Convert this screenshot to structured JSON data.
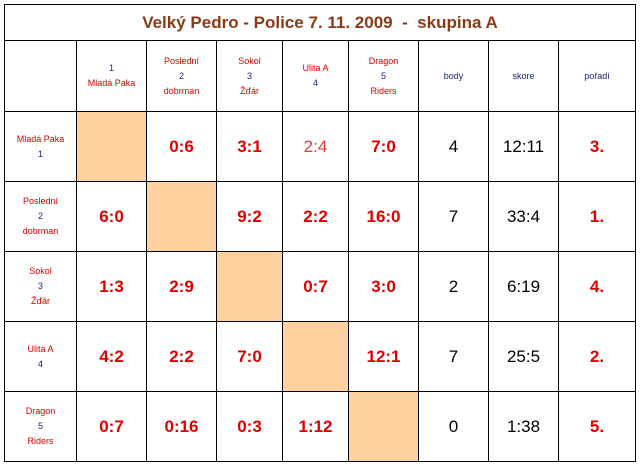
{
  "title": "Velký Pedro - Police 7. 11. 2009  -  skupina A",
  "columns": {
    "teams": [
      {
        "num": "1",
        "name_lines": [
          "Mladá Paka"
        ],
        "num_first": true
      },
      {
        "num": "2",
        "name_lines": [
          "Poslední",
          "dobrman"
        ]
      },
      {
        "num": "3",
        "name_lines": [
          "Sokol",
          "Žďár"
        ]
      },
      {
        "num": "4",
        "name_lines": [
          "Ulita A"
        ]
      },
      {
        "num": "5",
        "name_lines": [
          "Dragon",
          "Riders"
        ]
      }
    ],
    "stats": [
      "body",
      "skore",
      "pořadí"
    ]
  },
  "rows": [
    {
      "label": [
        "Mladá Paka",
        "1"
      ],
      "scores": [
        "",
        "0:6",
        "3:1",
        "2:4",
        "7:0"
      ],
      "body": "4",
      "skore": "12:11",
      "poradi": "3."
    },
    {
      "label": [
        "Poslední",
        "2",
        "dobrman"
      ],
      "scores": [
        "6:0",
        "",
        "9:2",
        "2:2",
        "16:0"
      ],
      "body": "7",
      "skore": "33:4",
      "poradi": "1."
    },
    {
      "label": [
        "Sokol",
        "3",
        "Žďár"
      ],
      "scores": [
        "1:3",
        "2:9",
        "",
        "0:7",
        "3:0"
      ],
      "body": "2",
      "skore": "6:19",
      "poradi": "4."
    },
    {
      "label": [
        "Ulita A",
        "4"
      ],
      "scores": [
        "4:2",
        "2:2",
        "7:0",
        "",
        "12:1"
      ],
      "body": "7",
      "skore": "25:5",
      "poradi": "2."
    },
    {
      "label": [
        "Dragon",
        "5",
        "Riders"
      ],
      "scores": [
        "0:7",
        "0:16",
        "0:3",
        "1:12",
        ""
      ],
      "body": "0",
      "skore": "1:38",
      "poradi": "5."
    }
  ],
  "colors": {
    "title": "#8b3a16",
    "team_text": "#d40000",
    "number_text": "#1a237e",
    "score_text": "#e00000",
    "diagonal_fill": "#fdd29f"
  }
}
